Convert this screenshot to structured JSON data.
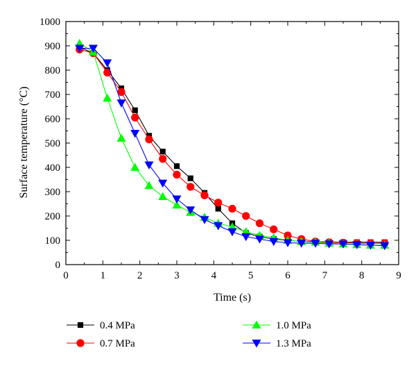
{
  "chart_data": {
    "type": "line",
    "title": "",
    "xlabel": "Time (s)",
    "ylabel": "Surface temperature (°C)",
    "xlim": [
      0,
      9
    ],
    "ylim": [
      0,
      1000
    ],
    "x_ticks": [
      0,
      1,
      2,
      3,
      4,
      5,
      6,
      7,
      8,
      9
    ],
    "y_ticks": [
      0,
      100,
      200,
      300,
      400,
      500,
      600,
      700,
      800,
      900,
      1000
    ],
    "grid": false,
    "legend_position": "bottom",
    "series": [
      {
        "name": "0.4 MPa",
        "color": "#000000",
        "marker": "square",
        "x": [
          0.37,
          0.74,
          1.12,
          1.5,
          1.87,
          2.25,
          2.62,
          3.0,
          3.37,
          3.75,
          4.12,
          4.5,
          4.87,
          5.24,
          5.62,
          6.0,
          6.37,
          6.75,
          7.12,
          7.5,
          7.87,
          8.24,
          8.62
        ],
        "values": [
          895,
          870,
          800,
          725,
          635,
          530,
          465,
          405,
          355,
          295,
          230,
          170,
          130,
          115,
          105,
          100,
          95,
          95,
          93,
          92,
          92,
          92,
          92
        ]
      },
      {
        "name": "0.7 MPa",
        "color": "#ff0000",
        "marker": "circle",
        "x": [
          0.37,
          0.74,
          1.12,
          1.5,
          1.87,
          2.25,
          2.62,
          3.0,
          3.37,
          3.75,
          4.12,
          4.5,
          4.87,
          5.24,
          5.62,
          6.0,
          6.37,
          6.75,
          7.12,
          7.5,
          7.87,
          8.24,
          8.62
        ],
        "values": [
          885,
          870,
          790,
          710,
          605,
          515,
          435,
          370,
          320,
          285,
          255,
          230,
          200,
          170,
          145,
          120,
          105,
          95,
          92,
          90,
          88,
          88,
          88
        ]
      },
      {
        "name": "1.0 MPa",
        "color": "#00ff00",
        "marker": "triangle-up",
        "x": [
          0.37,
          0.74,
          1.12,
          1.5,
          1.87,
          2.25,
          2.62,
          3.0,
          3.37,
          3.75,
          4.12,
          4.5,
          4.87,
          5.24,
          5.62,
          6.0,
          6.37,
          6.75,
          7.12,
          7.5,
          7.87,
          8.24,
          8.62
        ],
        "values": [
          910,
          875,
          685,
          520,
          400,
          325,
          280,
          245,
          215,
          195,
          170,
          155,
          135,
          120,
          110,
          100,
          95,
          92,
          88,
          85,
          82,
          80,
          80
        ]
      },
      {
        "name": "1.3 MPa",
        "color": "#0000ff",
        "marker": "triangle-down",
        "x": [
          0.37,
          0.74,
          1.12,
          1.5,
          1.87,
          2.25,
          2.62,
          3.0,
          3.37,
          3.75,
          4.12,
          4.5,
          4.87,
          5.24,
          5.62,
          6.0,
          6.37,
          6.75,
          7.12,
          7.5,
          7.87,
          8.24,
          8.62
        ],
        "values": [
          890,
          890,
          830,
          665,
          540,
          410,
          335,
          270,
          225,
          185,
          160,
          135,
          115,
          105,
          95,
          90,
          88,
          88,
          85,
          85,
          82,
          80,
          78
        ]
      }
    ]
  }
}
